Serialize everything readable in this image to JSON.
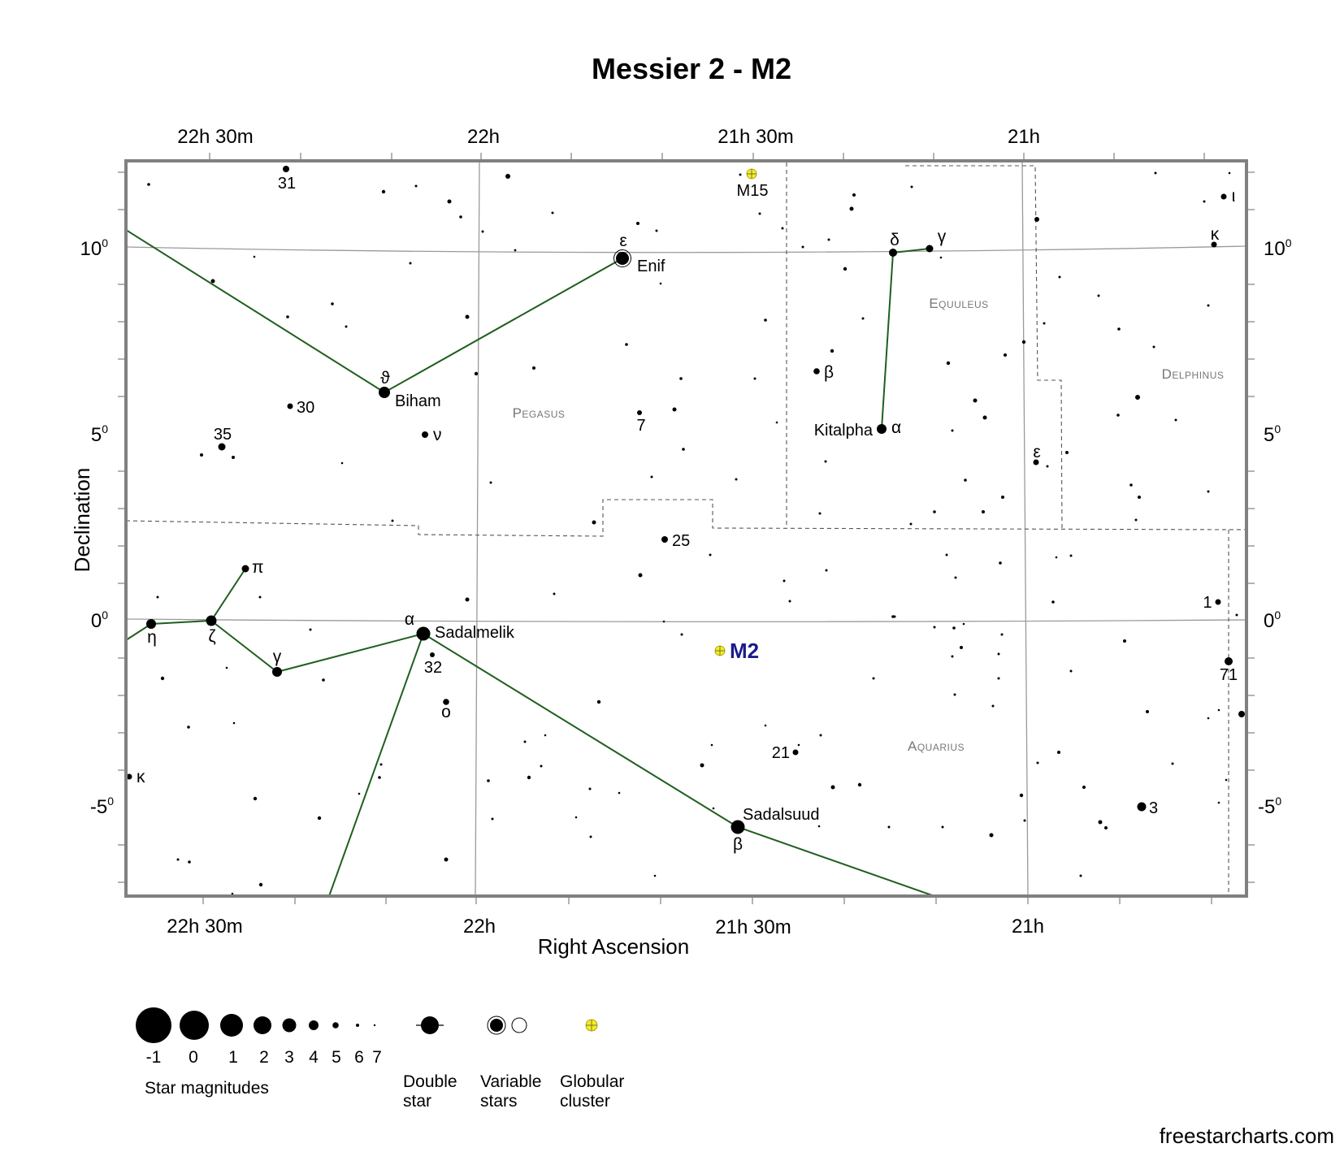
{
  "title": "Messier 2 - M2",
  "axes": {
    "x_title": "Right Ascension",
    "y_title": "Declination",
    "ra_ticks": [
      {
        "label": "22h 30m"
      },
      {
        "label": "22h"
      },
      {
        "label": "21h 30m"
      },
      {
        "label": "21h"
      }
    ],
    "dec_ticks": [
      {
        "label": "10",
        "sup": "0"
      },
      {
        "label": "5",
        "sup": "0"
      },
      {
        "label": "0",
        "sup": "0"
      },
      {
        "label": "-5",
        "sup": "0"
      }
    ]
  },
  "constellations": {
    "pegasus": "Pegasus",
    "equuleus": "Equuleus",
    "delphinus": "Delphinus",
    "aquarius": "Aquarius"
  },
  "labels": {
    "s31": "31",
    "m15": "M15",
    "eps_enif": "ε",
    "enif": "Enif",
    "delta_equ": "δ",
    "gamma_equ": "γ",
    "kappa_del": "κ",
    "iota_del": "ι",
    "theta_peg": "ϑ",
    "biham": "Biham",
    "s30": "30",
    "s35": "35",
    "nu_peg": "ν",
    "s7": "7",
    "beta_equ": "β",
    "kitalpha": "Kitalpha",
    "alpha_equ": "α",
    "eps_del": "ε",
    "s25": "25",
    "pi_aqr": "π",
    "eta_aqr": "η",
    "zeta_aqr": "ζ",
    "gamma_aqr": "γ",
    "alpha_aqr": "α",
    "sadalmelik": "Sadalmelik",
    "s32": "32",
    "omicron_aqr": "ο",
    "m2": "M2",
    "s1": "1",
    "s71": "71",
    "s21": "21",
    "kappa_aqr": "κ",
    "sadalsuud": "Sadalsuud",
    "beta_aqr": "β",
    "s3": "3"
  },
  "legend": {
    "magnitudes": [
      "-1",
      "0",
      "1",
      "2",
      "3",
      "4",
      "5",
      "6",
      "7"
    ],
    "magnitudes_caption": "Star magnitudes",
    "double_star": [
      "Double",
      "star"
    ],
    "variable_stars": [
      "Variable",
      "stars"
    ],
    "globular_cluster": [
      "Globular",
      "cluster"
    ]
  },
  "colors": {
    "constellation_line": "#1f5f1f",
    "cluster": "#f5ee1a",
    "target_label": "#1b1b8c",
    "frame": "#808080",
    "grid": "#999999"
  },
  "credit": "freestarcharts.com"
}
